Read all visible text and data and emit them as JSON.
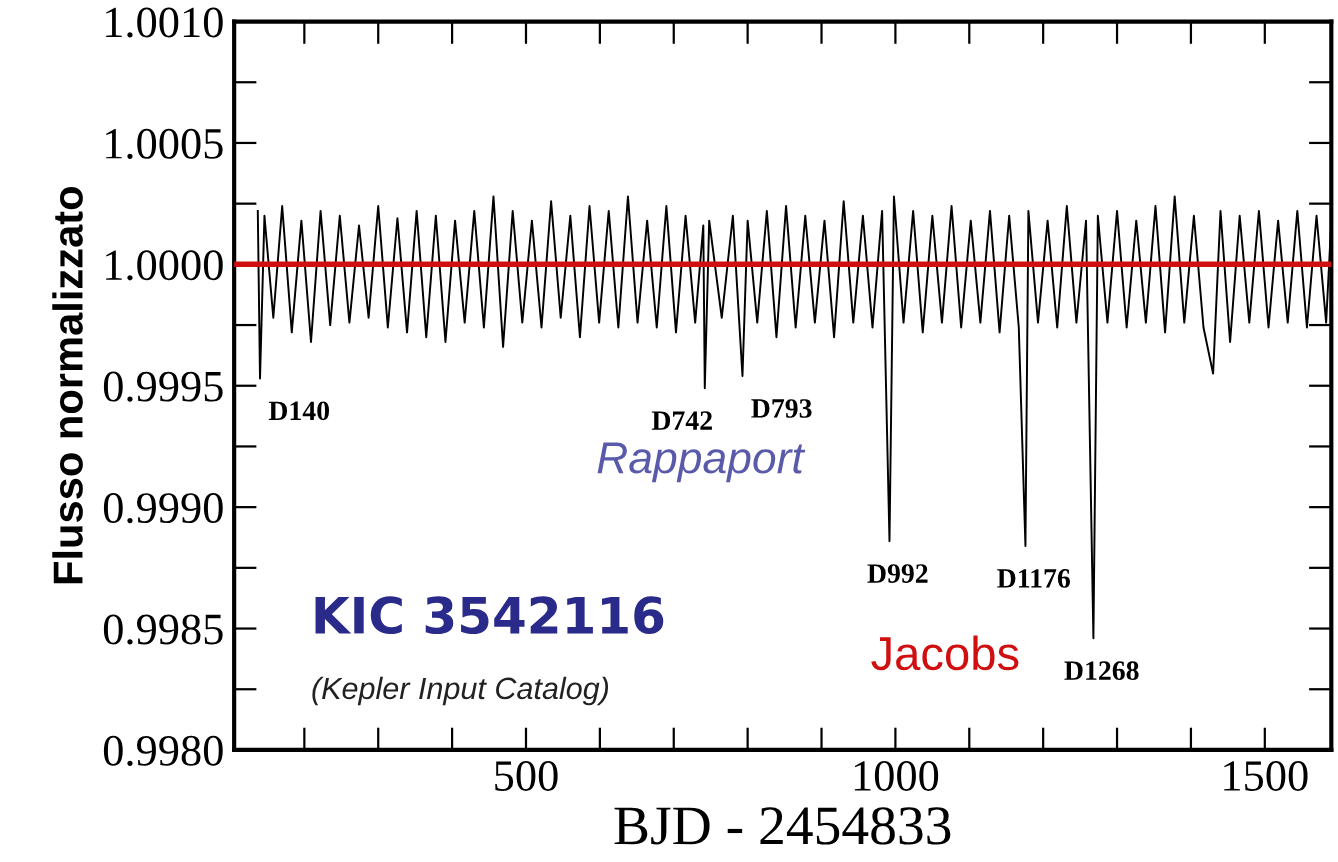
{
  "chart_data": {
    "type": "line",
    "xlabel": "BJD - 2454833",
    "ylabel": "Flusso normalizzato",
    "xlim": [
      105,
      1590
    ],
    "ylim": [
      0.998,
      1.001
    ],
    "xticks": [
      {
        "value": 200,
        "label": null
      },
      {
        "value": 300,
        "label": null
      },
      {
        "value": 400,
        "label": null
      },
      500,
      {
        "value": 600,
        "label": null
      },
      {
        "value": 700,
        "label": null
      },
      {
        "value": 800,
        "label": null
      },
      {
        "value": 900,
        "label": null
      },
      1000,
      {
        "value": 1100,
        "label": null
      },
      {
        "value": 1200,
        "label": null
      },
      {
        "value": 1300,
        "label": null
      },
      {
        "value": 1400,
        "label": null
      },
      1500
    ],
    "yticks": [
      {
        "value": 0.998,
        "label": "0.9980"
      },
      {
        "value": 0.99825,
        "label": null
      },
      {
        "value": 0.9985,
        "label": "0.9985"
      },
      {
        "value": 0.99875,
        "label": null
      },
      {
        "value": 0.999,
        "label": "0.9990"
      },
      {
        "value": 0.99925,
        "label": null
      },
      {
        "value": 0.9995,
        "label": "0.9995"
      },
      {
        "value": 0.99975,
        "label": null
      },
      {
        "value": 1.0,
        "label": "1.0000"
      },
      {
        "value": 1.00025,
        "label": null
      },
      {
        "value": 1.0005,
        "label": "1.0005"
      },
      {
        "value": 1.00075,
        "label": null
      },
      {
        "value": 1.001,
        "label": "1.0010"
      }
    ],
    "marker": "none",
    "line_style": "solid",
    "series": [
      {
        "color": "#000000",
        "x": [
          137,
          140,
          146,
          158,
          170,
          183,
          196,
          209,
          222,
          235,
          248,
          261,
          274,
          287,
          300,
          313,
          326,
          339,
          352,
          365,
          378,
          391,
          404,
          417,
          430,
          443,
          456,
          469,
          482,
          495,
          508,
          521,
          534,
          547,
          560,
          573,
          586,
          599,
          612,
          625,
          638,
          651,
          664,
          677,
          690,
          703,
          716,
          729,
          740,
          742,
          748,
          765,
          780,
          793,
          800,
          813,
          826,
          839,
          852,
          865,
          878,
          891,
          904,
          917,
          930,
          943,
          956,
          969,
          982,
          992,
          998,
          1011,
          1024,
          1037,
          1050,
          1063,
          1076,
          1089,
          1102,
          1115,
          1128,
          1141,
          1154,
          1167,
          1176,
          1180,
          1193,
          1206,
          1219,
          1232,
          1245,
          1258,
          1268,
          1274,
          1287,
          1300,
          1313,
          1326,
          1339,
          1352,
          1365,
          1378,
          1391,
          1404,
          1417,
          1430,
          1440,
          1453,
          1466,
          1479,
          1492,
          1505,
          1518,
          1531,
          1544,
          1557,
          1570,
          1583,
          1590
        ],
        "values": [
          1.00022,
          0.99953,
          1.0002,
          0.99978,
          1.00024,
          0.99972,
          1.00018,
          0.99968,
          1.00022,
          0.99975,
          1.0002,
          0.99976,
          1.00016,
          0.99978,
          1.00024,
          0.99974,
          1.00019,
          0.99972,
          1.00022,
          0.9997,
          1.0002,
          0.99968,
          1.00018,
          0.99976,
          1.00022,
          0.99974,
          1.00028,
          0.99966,
          1.00022,
          0.99976,
          1.00018,
          0.99974,
          1.00026,
          0.99978,
          1.0002,
          0.9997,
          1.00024,
          0.99976,
          1.00022,
          0.99974,
          1.00028,
          0.99976,
          1.00018,
          0.99974,
          1.00024,
          0.99972,
          1.0002,
          0.99976,
          1.00016,
          0.99949,
          1.00018,
          0.99978,
          1.0002,
          0.99954,
          1.00018,
          0.99976,
          1.00022,
          0.9997,
          1.00024,
          0.99974,
          1.0002,
          0.99976,
          1.00018,
          0.9997,
          1.00026,
          0.99976,
          1.0002,
          0.99974,
          1.00022,
          0.99886,
          1.00028,
          0.99976,
          1.00022,
          0.99972,
          1.0002,
          0.99976,
          1.00024,
          0.99974,
          1.00018,
          0.99976,
          1.00022,
          0.99972,
          1.0002,
          0.99974,
          0.99884,
          1.00022,
          0.99976,
          1.00018,
          0.99974,
          1.00024,
          0.99976,
          1.00018,
          0.99846,
          1.0002,
          0.99976,
          1.00022,
          0.99974,
          1.00018,
          0.99976,
          1.00024,
          0.99972,
          1.00028,
          0.99976,
          1.0002,
          0.99974,
          0.99955,
          1.00022,
          0.99968,
          1.0002,
          0.99976,
          1.00022,
          0.99974,
          1.00018,
          0.99976,
          1.00022,
          0.99974,
          1.0002,
          0.99976,
          1.00018
        ]
      }
    ],
    "ref_lines": [
      {
        "axis": "y",
        "value": 1.0,
        "color": "#d01010",
        "line_style": "solid"
      }
    ],
    "annotations": [
      {
        "text": "D140",
        "x": 140,
        "y": 0.99953
      },
      {
        "text": "D742",
        "x": 742,
        "y": 0.99949
      },
      {
        "text": "D793",
        "x": 793,
        "y": 0.99954
      },
      {
        "text": "D992",
        "x": 992,
        "y": 0.99886
      },
      {
        "text": "D1176",
        "x": 1176,
        "y": 0.99884
      },
      {
        "text": "D1268",
        "x": 1268,
        "y": 0.99846
      },
      "Rappaport",
      "KIC 3542116",
      "(Kepler Input Catalog)",
      "Jacobs"
    ]
  }
}
